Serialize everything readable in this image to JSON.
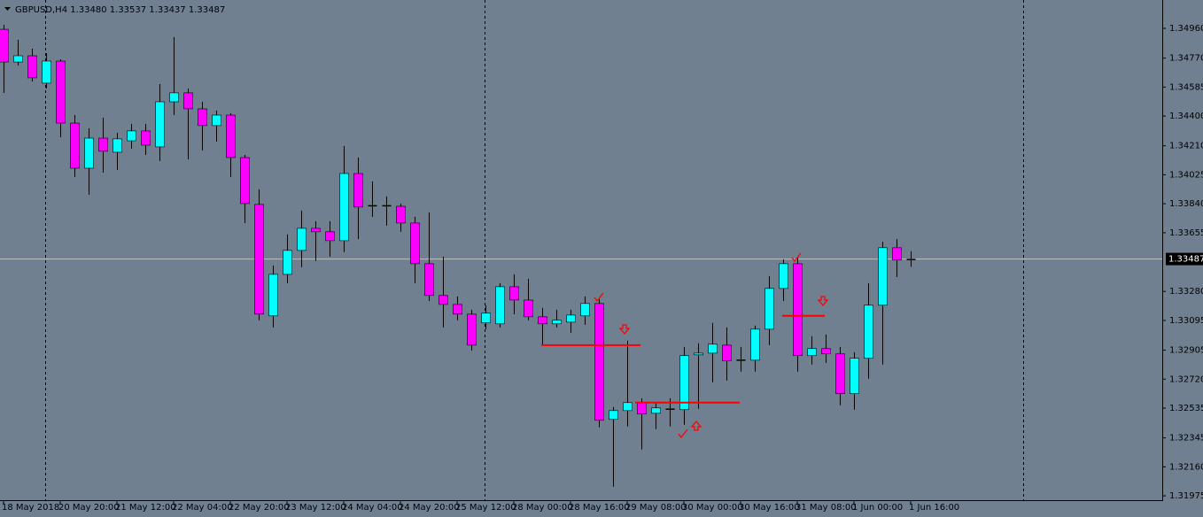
{
  "chart_data": {
    "type": "candlestick",
    "title": "GBPUSD,H4  1.33480 1.33537 1.33437 1.33487",
    "categories": [
      "18 May 2018",
      null,
      null,
      null,
      "20 May 20:00",
      null,
      null,
      null,
      "21 May 12:00",
      null,
      null,
      null,
      "22 May 04:00",
      null,
      null,
      null,
      "22 May 20:00",
      null,
      null,
      null,
      "23 May 12:00",
      null,
      null,
      null,
      "24 May 04:00",
      null,
      null,
      null,
      "24 May 20:00",
      null,
      null,
      null,
      "25 May 12:00",
      null,
      null,
      null,
      "28 May 00:00",
      null,
      null,
      null,
      "28 May 16:00",
      null,
      null,
      null,
      "29 May 08:00",
      null,
      null,
      null,
      "30 May 00:00",
      null,
      null,
      null,
      "30 May 16:00",
      null,
      null,
      null,
      "31 May 08:00",
      null,
      null,
      null,
      "1 Jun 00:00",
      null,
      null,
      null,
      "1 Jun 16:00"
    ],
    "open": [
      1.34954,
      1.34745,
      1.34785,
      1.3461,
      1.34751,
      1.34355,
      1.34067,
      1.34259,
      1.34169,
      1.34242,
      1.34305,
      1.34203,
      1.34491,
      1.34548,
      1.34446,
      1.34339,
      1.34406,
      1.34135,
      1.33836,
      1.33124,
      1.33389,
      1.33542,
      1.33683,
      1.33661,
      1.33604,
      1.34033,
      1.33824,
      1.3383,
      1.33824,
      1.33717,
      1.33457,
      1.33254,
      1.33197,
      1.33135,
      1.33079,
      1.33073,
      1.3331,
      1.33225,
      1.33118,
      1.33073,
      1.33084,
      1.33124,
      1.33203,
      1.32463,
      1.32519,
      1.3257,
      1.32502,
      1.32525,
      1.32525,
      1.32875,
      1.32886,
      1.32937,
      1.32841,
      1.32841,
      1.33039,
      1.33299,
      1.33457,
      1.3287,
      1.32915,
      1.32881,
      1.32627,
      1.32853,
      1.33192,
      1.33559,
      1.3348
    ],
    "high": [
      1.34983,
      1.34887,
      1.3483,
      1.34802,
      1.34762,
      1.34406,
      1.34322,
      1.34389,
      1.34293,
      1.3435,
      1.3435,
      1.34604,
      1.34904,
      1.34576,
      1.34491,
      1.34435,
      1.34418,
      1.34152,
      1.33932,
      1.33446,
      1.33644,
      1.33796,
      1.33728,
      1.33728,
      1.34209,
      1.34135,
      1.33983,
      1.33887,
      1.33841,
      1.33757,
      1.33785,
      1.33502,
      1.33248,
      1.33163,
      1.33192,
      1.33333,
      1.33389,
      1.33361,
      1.33175,
      1.33163,
      1.33163,
      1.33248,
      1.33231,
      1.32542,
      1.32966,
      1.32598,
      1.3257,
      1.32598,
      1.32926,
      1.32949,
      1.33079,
      1.3305,
      1.32926,
      1.33062,
      1.33378,
      1.33485,
      1.33502,
      1.32994,
      1.33005,
      1.32926,
      1.32892,
      1.33333,
      1.33598,
      1.33615,
      1.33537
    ],
    "low": [
      1.34548,
      1.34723,
      1.34621,
      1.34576,
      1.34265,
      1.34011,
      1.33898,
      1.34039,
      1.34056,
      1.34192,
      1.34152,
      1.34113,
      1.34406,
      1.34124,
      1.3418,
      1.34237,
      1.34011,
      1.33717,
      1.33096,
      1.3305,
      1.33333,
      1.33435,
      1.33474,
      1.33502,
      1.33531,
      1.33615,
      1.33757,
      1.337,
      1.33661,
      1.33333,
      1.3322,
      1.3305,
      1.33096,
      1.32903,
      1.33039,
      1.3305,
      1.33135,
      1.33096,
      1.32937,
      1.3305,
      1.33016,
      1.33067,
      1.32412,
      1.32033,
      1.32418,
      1.32271,
      1.32401,
      1.32418,
      1.32429,
      1.32531,
      1.327,
      1.32711,
      1.32768,
      1.32768,
      1.32937,
      1.3322,
      1.32768,
      1.32813,
      1.32824,
      1.32553,
      1.32525,
      1.32723,
      1.32813,
      1.33372,
      1.33437
    ],
    "close": [
      1.34745,
      1.34785,
      1.34644,
      1.34751,
      1.34355,
      1.34067,
      1.34259,
      1.34175,
      1.34254,
      1.34305,
      1.34214,
      1.34491,
      1.34548,
      1.34446,
      1.34339,
      1.34406,
      1.34135,
      1.33841,
      1.33135,
      1.33389,
      1.33542,
      1.33683,
      1.33661,
      1.33604,
      1.34033,
      1.33819,
      1.3383,
      1.33824,
      1.33717,
      1.33457,
      1.33254,
      1.33197,
      1.33135,
      1.32937,
      1.33141,
      1.3331,
      1.33225,
      1.33118,
      1.33073,
      1.33096,
      1.33129,
      1.33203,
      1.32457,
      1.32519,
      1.3257,
      1.32497,
      1.32536,
      1.32531,
      1.3287,
      1.32886,
      1.32943,
      1.32836,
      1.32841,
      1.33039,
      1.33299,
      1.33457,
      1.3287,
      1.32915,
      1.32881,
      1.32627,
      1.32853,
      1.33192,
      1.33559,
      1.3348,
      1.33487
    ],
    "up_color": "#00ffff",
    "down_color": "#ff00ff",
    "level_color": "#ff0000",
    "levels": [
      1.32937,
      1.3257,
      1.33124
    ],
    "last_price": 1.33487,
    "ylim": [
      1.31947,
      1.35141
    ],
    "yticks": [
      {
        "value": 1.3496,
        "label": "1.34960"
      },
      {
        "value": 1.3477,
        "label": "1.34770"
      },
      {
        "value": 1.34585,
        "label": "1.34585"
      },
      {
        "value": 1.344,
        "label": "1.34400"
      },
      {
        "value": 1.3421,
        "label": "1.34210"
      },
      {
        "value": 1.34025,
        "label": "1.34025"
      },
      {
        "value": 1.3384,
        "label": "1.33840"
      },
      {
        "value": 1.33655,
        "label": "1.33655"
      },
      {
        "value": 1.3328,
        "label": "1.33280"
      },
      {
        "value": 1.33095,
        "label": "1.33095"
      },
      {
        "value": 1.32905,
        "label": "1.32905"
      },
      {
        "value": 1.3272,
        "label": "1.32720"
      },
      {
        "value": 1.32535,
        "label": "1.32535"
      },
      {
        "value": 1.32345,
        "label": "1.32345"
      },
      {
        "value": 1.3216,
        "label": "1.32160"
      },
      {
        "value": 1.31975,
        "label": "1.31975"
      }
    ],
    "grid": false
  }
}
